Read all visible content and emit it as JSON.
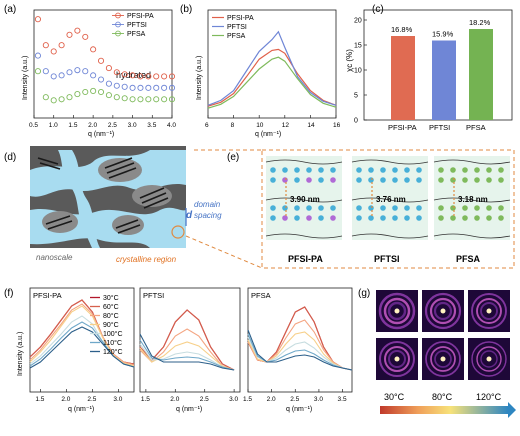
{
  "panels": {
    "a": {
      "label": "(a)",
      "ylabel": "Intensity (a.u.)",
      "xlabel": "q (nm⁻¹)",
      "annotation": "hydrated",
      "xticks": [
        "0.5",
        "1.0",
        "1.5",
        "2.0",
        "2.5",
        "3.0",
        "3.5",
        "4.0"
      ],
      "legend": [
        "PFSI-PA",
        "PFTSI",
        "PFSA"
      ]
    },
    "b": {
      "label": "(b)",
      "ylabel": "Intensity (a.u.)",
      "xlabel": "q (nm⁻¹)",
      "xticks": [
        "6",
        "8",
        "10",
        "12",
        "14",
        "16"
      ],
      "legend": [
        "PFSI-PA",
        "PFTSI",
        "PFSA"
      ]
    },
    "c": {
      "label": "(c)",
      "ylabel": "χc (%)",
      "yticks": [
        "0",
        "5",
        "10",
        "15",
        "20"
      ]
    },
    "d": {
      "label": "(d)",
      "domain_label": "d",
      "domain_text_1": "domain",
      "domain_text_2": "spacing",
      "nanoscale": "nanoscale",
      "crystalline": "crystalline region"
    },
    "e": {
      "label": "(e)",
      "spacings": [
        "3.90 nm",
        "3.76 nm",
        "3.18 nm"
      ],
      "names": [
        "PFSI-PA",
        "PFTSI",
        "PFSA"
      ]
    },
    "f": {
      "label": "(f)",
      "ylabel": "Intensity (a.u.)",
      "xlabel": "q (nm⁻¹)",
      "titles": [
        "PFSI-PA",
        "PFTSI",
        "PFSA"
      ],
      "xticks": [
        "1.5",
        "2.0",
        "2.5",
        "3.0",
        "3.5"
      ],
      "legend": [
        "30°C",
        "60°C",
        "80°C",
        "90°C",
        "100°C",
        "110°C",
        "120°C"
      ]
    },
    "g": {
      "label": "(g)",
      "temps": [
        "30°C",
        "80°C",
        "120°C"
      ]
    }
  },
  "colors": {
    "pfsi_pa": "#e0604a",
    "pftsi": "#6f86d6",
    "pfsa": "#7fba5c",
    "temps": [
      "#b2182b",
      "#d6604d",
      "#f4a582",
      "#f7d08a",
      "#c7dde0",
      "#6fa8c9",
      "#2c5f8a"
    ]
  },
  "chart_data": [
    {
      "type": "scatter",
      "title": "",
      "xlabel": "q (nm⁻¹)",
      "ylabel": "Intensity (a.u.)",
      "xlim": [
        0.5,
        4.0
      ],
      "series": [
        {
          "name": "PFSI-PA",
          "x": [
            0.6,
            0.8,
            1.0,
            1.2,
            1.4,
            1.6,
            1.8,
            2.0,
            2.2,
            2.4,
            2.6,
            2.8,
            3.0,
            3.2,
            3.4,
            3.6,
            3.8,
            4.0
          ],
          "y": [
            0.95,
            0.7,
            0.64,
            0.7,
            0.8,
            0.84,
            0.78,
            0.66,
            0.55,
            0.48,
            0.44,
            0.42,
            0.41,
            0.4,
            0.4,
            0.4,
            0.4,
            0.4
          ]
        },
        {
          "name": "PFTSI",
          "x": [
            0.6,
            0.8,
            1.0,
            1.2,
            1.4,
            1.6,
            1.8,
            2.0,
            2.2,
            2.4,
            2.6,
            2.8,
            3.0,
            3.2,
            3.4,
            3.6,
            3.8,
            4.0
          ],
          "y": [
            0.6,
            0.45,
            0.4,
            0.41,
            0.44,
            0.46,
            0.45,
            0.41,
            0.37,
            0.33,
            0.31,
            0.3,
            0.29,
            0.29,
            0.29,
            0.29,
            0.29,
            0.29
          ]
        },
        {
          "name": "PFSA",
          "x": [
            0.6,
            0.8,
            1.0,
            1.2,
            1.4,
            1.6,
            1.8,
            2.0,
            2.2,
            2.4,
            2.6,
            2.8,
            3.0,
            3.2,
            3.4,
            3.6,
            3.8,
            4.0
          ],
          "y": [
            0.45,
            0.2,
            0.17,
            0.18,
            0.2,
            0.23,
            0.25,
            0.26,
            0.25,
            0.22,
            0.2,
            0.19,
            0.18,
            0.18,
            0.18,
            0.18,
            0.18,
            0.18
          ]
        }
      ]
    },
    {
      "type": "line",
      "title": "",
      "xlabel": "q (nm⁻¹)",
      "ylabel": "Intensity (a.u.)",
      "xlim": [
        6,
        16
      ],
      "series": [
        {
          "name": "PFSI-PA",
          "x": [
            6,
            7,
            8,
            9,
            10,
            11,
            11.5,
            12,
            13,
            14,
            15,
            16
          ],
          "y": [
            0.12,
            0.16,
            0.25,
            0.42,
            0.6,
            0.69,
            0.7,
            0.66,
            0.45,
            0.28,
            0.18,
            0.13
          ]
        },
        {
          "name": "PFTSI",
          "x": [
            6,
            7,
            8,
            9,
            10,
            11,
            11.5,
            12,
            13,
            14,
            15,
            16
          ],
          "y": [
            0.13,
            0.18,
            0.28,
            0.48,
            0.68,
            0.8,
            0.88,
            0.72,
            0.42,
            0.26,
            0.17,
            0.13
          ]
        },
        {
          "name": "PFSA",
          "x": [
            6,
            7,
            8,
            9,
            10,
            11,
            11.5,
            12,
            13,
            14,
            15,
            16
          ],
          "y": [
            0.1,
            0.14,
            0.22,
            0.36,
            0.5,
            0.6,
            0.62,
            0.58,
            0.4,
            0.24,
            0.15,
            0.11
          ]
        }
      ]
    },
    {
      "type": "bar",
      "title": "",
      "ylabel": "χc (%)",
      "categories": [
        "PFSI-PA",
        "PFTSI",
        "PFSA"
      ],
      "values": [
        16.8,
        15.9,
        18.2
      ],
      "data_labels": [
        "16.8%",
        "15.9%",
        "18.2%"
      ],
      "ylim": [
        0,
        22
      ]
    },
    {
      "type": "line",
      "title": "PFSI-PA",
      "xlabel": "q (nm⁻¹)",
      "ylabel": "Intensity (a.u.)",
      "xlim": [
        1.3,
        3.3
      ],
      "peak_q": 2.3,
      "x": [
        1.3,
        1.5,
        1.7,
        1.9,
        2.1,
        2.3,
        2.5,
        2.7,
        2.9,
        3.1,
        3.3
      ],
      "series": [
        {
          "name": "30°C",
          "values": [
            0.35,
            0.45,
            0.58,
            0.72,
            0.86,
            0.92,
            0.8,
            0.55,
            0.38,
            0.3,
            0.28
          ]
        },
        {
          "name": "60°C",
          "values": [
            0.35,
            0.45,
            0.58,
            0.72,
            0.86,
            0.92,
            0.8,
            0.55,
            0.38,
            0.3,
            0.28
          ]
        },
        {
          "name": "80°C",
          "values": [
            0.32,
            0.42,
            0.55,
            0.68,
            0.82,
            0.88,
            0.78,
            0.55,
            0.38,
            0.3,
            0.27
          ]
        },
        {
          "name": "90°C",
          "values": [
            0.3,
            0.4,
            0.52,
            0.66,
            0.8,
            0.86,
            0.76,
            0.54,
            0.37,
            0.29,
            0.26
          ]
        },
        {
          "name": "100°C",
          "values": [
            0.28,
            0.36,
            0.47,
            0.58,
            0.7,
            0.76,
            0.68,
            0.5,
            0.36,
            0.28,
            0.25
          ]
        },
        {
          "name": "110°C",
          "values": [
            0.26,
            0.33,
            0.43,
            0.54,
            0.64,
            0.7,
            0.64,
            0.5,
            0.36,
            0.28,
            0.25
          ]
        },
        {
          "name": "120°C",
          "values": [
            0.24,
            0.3,
            0.4,
            0.5,
            0.6,
            0.65,
            0.6,
            0.48,
            0.36,
            0.28,
            0.25
          ]
        }
      ]
    },
    {
      "type": "line",
      "title": "PFTSI",
      "xlabel": "q (nm⁻¹)",
      "xlim": [
        1.4,
        3.1
      ],
      "x": [
        1.4,
        1.6,
        1.8,
        2.0,
        2.2,
        2.4,
        2.6,
        2.8,
        3.0
      ],
      "series": [
        {
          "name": "30°C",
          "values": [
            0.45,
            0.32,
            0.45,
            0.7,
            0.82,
            0.72,
            0.45,
            0.28,
            0.22
          ]
        },
        {
          "name": "60°C",
          "values": [
            0.45,
            0.32,
            0.45,
            0.7,
            0.82,
            0.72,
            0.45,
            0.28,
            0.22
          ]
        },
        {
          "name": "80°C",
          "values": [
            0.42,
            0.3,
            0.4,
            0.56,
            0.63,
            0.56,
            0.4,
            0.26,
            0.22
          ]
        },
        {
          "name": "90°C",
          "values": [
            0.44,
            0.3,
            0.36,
            0.46,
            0.5,
            0.46,
            0.36,
            0.26,
            0.22
          ]
        },
        {
          "name": "100°C",
          "values": [
            0.48,
            0.32,
            0.33,
            0.38,
            0.4,
            0.38,
            0.32,
            0.25,
            0.22
          ]
        },
        {
          "name": "110°C",
          "values": [
            0.52,
            0.34,
            0.32,
            0.34,
            0.35,
            0.34,
            0.3,
            0.25,
            0.22
          ]
        },
        {
          "name": "120°C",
          "values": [
            0.58,
            0.36,
            0.3,
            0.3,
            0.3,
            0.3,
            0.28,
            0.24,
            0.22
          ]
        }
      ]
    },
    {
      "type": "line",
      "title": "PFSA",
      "xlabel": "q (nm⁻¹)",
      "xlim": [
        1.5,
        3.7
      ],
      "x": [
        1.5,
        1.7,
        1.9,
        2.1,
        2.3,
        2.5,
        2.7,
        2.9,
        3.1,
        3.3,
        3.5,
        3.7
      ],
      "series": [
        {
          "name": "30°C",
          "values": [
            0.5,
            0.32,
            0.3,
            0.4,
            0.6,
            0.8,
            0.85,
            0.7,
            0.45,
            0.3,
            0.24,
            0.22
          ]
        },
        {
          "name": "60°C",
          "values": [
            0.5,
            0.32,
            0.3,
            0.4,
            0.6,
            0.8,
            0.85,
            0.7,
            0.45,
            0.3,
            0.24,
            0.22
          ]
        },
        {
          "name": "80°C",
          "values": [
            0.5,
            0.32,
            0.3,
            0.38,
            0.54,
            0.68,
            0.72,
            0.6,
            0.42,
            0.3,
            0.24,
            0.22
          ]
        },
        {
          "name": "90°C",
          "values": [
            0.52,
            0.33,
            0.3,
            0.36,
            0.48,
            0.58,
            0.6,
            0.52,
            0.38,
            0.29,
            0.24,
            0.22
          ]
        },
        {
          "name": "100°C",
          "values": [
            0.55,
            0.35,
            0.3,
            0.34,
            0.42,
            0.48,
            0.5,
            0.44,
            0.35,
            0.28,
            0.24,
            0.22
          ]
        },
        {
          "name": "110°C",
          "values": [
            0.58,
            0.36,
            0.3,
            0.32,
            0.37,
            0.41,
            0.42,
            0.38,
            0.32,
            0.27,
            0.24,
            0.22
          ]
        },
        {
          "name": "120°C",
          "values": [
            0.62,
            0.38,
            0.3,
            0.3,
            0.33,
            0.36,
            0.37,
            0.35,
            0.3,
            0.26,
            0.24,
            0.22
          ]
        }
      ]
    }
  ]
}
